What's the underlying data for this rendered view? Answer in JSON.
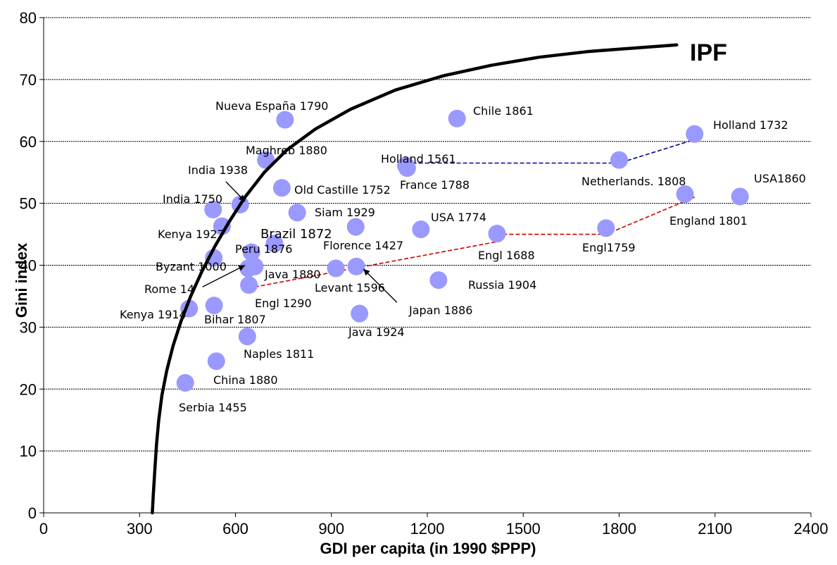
{
  "chart_data": {
    "type": "scatter",
    "xlabel": "GDI per capita (in 1990 $PPP)",
    "ylabel": "Gini index",
    "xlim": [
      0,
      2400
    ],
    "ylim": [
      0,
      80
    ],
    "x_ticks": [
      0,
      300,
      600,
      900,
      1200,
      1500,
      1800,
      2100,
      2400
    ],
    "y_ticks": [
      0,
      10,
      20,
      30,
      40,
      50,
      60,
      70,
      80
    ],
    "grid": "horizontal",
    "point_color": "#9999ff",
    "points": [
      {
        "label": "Nueva España 1790",
        "x": 755,
        "y": 63.5
      },
      {
        "label": "Chile 1861",
        "x": 1293,
        "y": 63.7
      },
      {
        "label": "Holland 1732",
        "x": 2036,
        "y": 61.2
      },
      {
        "label": "Maghreb 1880",
        "x": 695,
        "y": 57
      },
      {
        "label": "Holland 1561",
        "x": 1133,
        "y": 56.1
      },
      {
        "label": "France 1788",
        "x": 1137,
        "y": 55.7
      },
      {
        "label": "Netherlands. 1808",
        "x": 1800,
        "y": 57
      },
      {
        "label": "Old Castille 1752",
        "x": 745,
        "y": 52.5
      },
      {
        "label": "England 1801",
        "x": 2006,
        "y": 51.5
      },
      {
        "label": "USA1860",
        "x": 2178,
        "y": 51.1
      },
      {
        "label": "India 1938",
        "x": 615,
        "y": 49.8
      },
      {
        "label": "India 1750",
        "x": 530,
        "y": 49
      },
      {
        "label": "Siam 1929",
        "x": 793,
        "y": 48.5
      },
      {
        "label": "Kenya 1927",
        "x": 558,
        "y": 46.3
      },
      {
        "label": "USA 1774",
        "x": 1180,
        "y": 45.8
      },
      {
        "label": "Florence 1427",
        "x": 976,
        "y": 46.2
      },
      {
        "label": "Engl  1688",
        "x": 1418,
        "y": 45.1
      },
      {
        "label": "Engl1759",
        "x": 1759,
        "y": 46
      },
      {
        "label": "Brazil 1872",
        "x": 722,
        "y": 43.5
      },
      {
        "label": "Peru 1876",
        "x": 650,
        "y": 42.1
      },
      {
        "label": "Byzant 1000",
        "x": 532,
        "y": 41.2
      },
      {
        "label": "Java 1880",
        "x": 660,
        "y": 39.8
      },
      {
        "label": "Rome 14",
        "x": 640,
        "y": 39.5
      },
      {
        "label": "Levant 1596",
        "x": 978,
        "y": 39.8
      },
      {
        "label": "Japan 1886",
        "x": 914,
        "y": 39.5
      },
      {
        "label": "Russia 1904",
        "x": 1235,
        "y": 37.6
      },
      {
        "label": "Engl 1290",
        "x": 642,
        "y": 36.8
      },
      {
        "label": "Kenya 1914",
        "x": 455,
        "y": 33
      },
      {
        "label": "Bihar 1807",
        "x": 533,
        "y": 33.5
      },
      {
        "label": "Java 1924",
        "x": 988,
        "y": 32.2
      },
      {
        "label": "Naples 1811",
        "x": 637,
        "y": 28.5
      },
      {
        "label": "China 1880",
        "x": 540,
        "y": 24.5
      },
      {
        "label": "Serbia 1455",
        "x": 443,
        "y": 21
      }
    ],
    "curve": {
      "label": "IPF",
      "points": [
        [
          340,
          0
        ],
        [
          343,
          3
        ],
        [
          348,
          7
        ],
        [
          353,
          11
        ],
        [
          360,
          15
        ],
        [
          370,
          19
        ],
        [
          385,
          23
        ],
        [
          405,
          27
        ],
        [
          430,
          31
        ],
        [
          460,
          35
        ],
        [
          495,
          39
        ],
        [
          535,
          43
        ],
        [
          580,
          47
        ],
        [
          630,
          51
        ],
        [
          690,
          55
        ],
        [
          760,
          58.6
        ],
        [
          850,
          62
        ],
        [
          960,
          65.2
        ],
        [
          1100,
          68.3
        ],
        [
          1250,
          70.6
        ],
        [
          1400,
          72.3
        ],
        [
          1550,
          73.6
        ],
        [
          1700,
          74.5
        ],
        [
          1850,
          75.1
        ],
        [
          1980,
          75.6
        ]
      ]
    },
    "trend_lines": [
      {
        "color": "#000099",
        "points": [
          [
            1133,
            56.5
          ],
          [
            1800,
            56.5
          ],
          [
            2036,
            60.3
          ]
        ]
      },
      {
        "color": "#cc0000",
        "points": [
          [
            660,
            36.5
          ],
          [
            1418,
            43.8
          ],
          [
            1418,
            45
          ],
          [
            1759,
            45
          ],
          [
            2036,
            51
          ]
        ]
      }
    ],
    "arrows": [
      {
        "from": [
          570,
          53.5
        ],
        "to": [
          630,
          50.3
        ]
      },
      {
        "from": [
          497,
          36.5
        ],
        "to": [
          630,
          40
        ]
      },
      {
        "from": [
          1105,
          34
        ],
        "to": [
          1000,
          39.4
        ]
      }
    ]
  }
}
